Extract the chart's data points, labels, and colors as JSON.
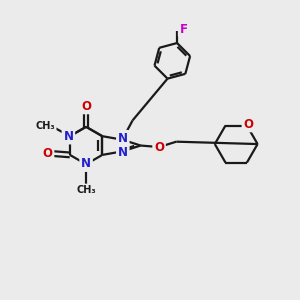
{
  "bg_color": "#ebebeb",
  "bond_color": "#1a1a1a",
  "n_color": "#2020cc",
  "o_color": "#cc0000",
  "f_color": "#cc00cc",
  "line_width": 1.6,
  "figsize": [
    3.0,
    3.0
  ],
  "dpi": 100,
  "xlim": [
    0,
    10
  ],
  "ylim": [
    0,
    10
  ]
}
